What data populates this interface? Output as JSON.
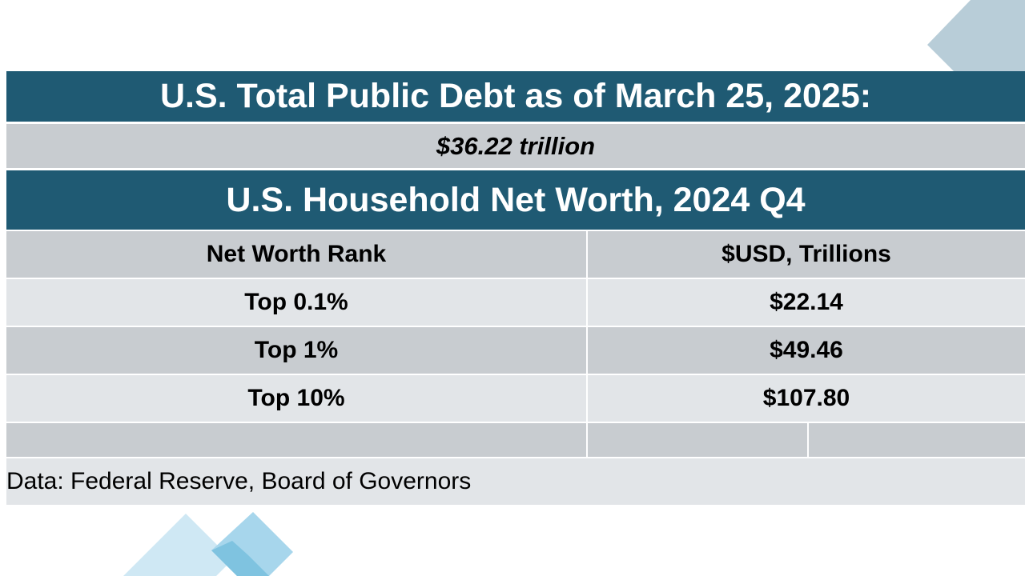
{
  "debt": {
    "title": "U.S. Total Public Debt as of March 25, 2025:",
    "value": "$36.22 trillion"
  },
  "net_worth": {
    "title": "U.S. Household Net Worth, 2024 Q4",
    "columns": [
      "Net Worth Rank",
      "$USD, Trillions"
    ],
    "rows": [
      {
        "rank": "Top 0.1%",
        "value": "$22.14"
      },
      {
        "rank": "Top 1%",
        "value": "$49.46"
      },
      {
        "rank": "Top 10%",
        "value": "$107.80"
      }
    ]
  },
  "source": "Data: Federal Reserve, Board of Governors",
  "colors": {
    "header_band": "#1f5a73",
    "row_dark": "#c8ccd0",
    "row_light": "#e2e5e8",
    "decor_light": "#b8e0f0",
    "decor_mid": "#7fc3e0",
    "decor_gray": "#b8cdd8"
  }
}
